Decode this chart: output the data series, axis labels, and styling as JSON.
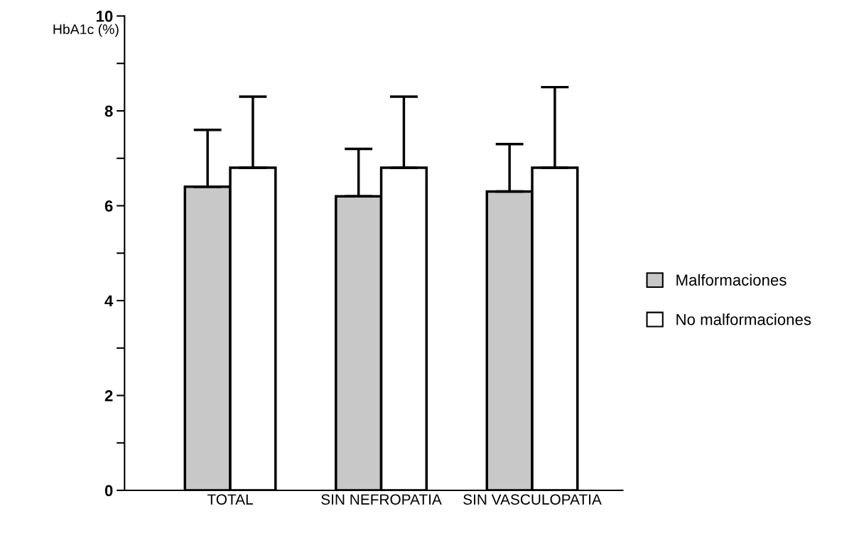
{
  "chart_data": {
    "type": "bar",
    "ylabel": "HbA1c (%)",
    "categories": [
      "TOTAL",
      "SIN NEFROPATIA",
      "SIN VASCULOPATIA"
    ],
    "series": [
      {
        "name": "Malformaciones",
        "color": "#c8c8c8",
        "values": [
          6.4,
          6.2,
          6.3
        ],
        "errors": [
          [
            6.4,
            7.6
          ],
          [
            6.2,
            7.2
          ],
          [
            6.3,
            7.3
          ]
        ]
      },
      {
        "name": "No malformaciones",
        "color": "#ffffff",
        "values": [
          6.8,
          6.8,
          6.8
        ],
        "errors": [
          [
            6.8,
            8.3
          ],
          [
            6.8,
            8.3
          ],
          [
            6.8,
            8.5
          ]
        ]
      }
    ],
    "ylim": [
      0,
      10
    ],
    "yticks": [
      0,
      2,
      4,
      6,
      8,
      10
    ],
    "grid": false,
    "legend": "right"
  }
}
